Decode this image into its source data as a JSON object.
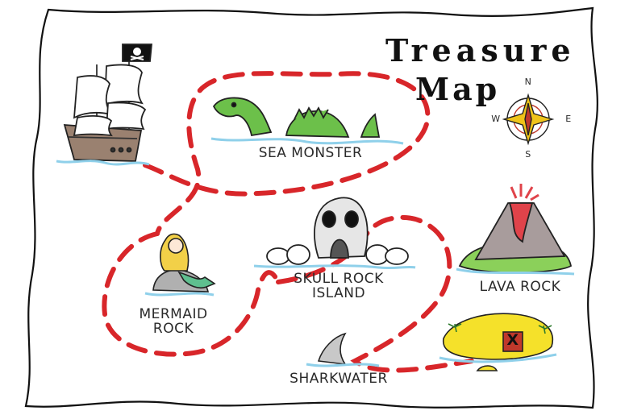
{
  "map": {
    "title_line1": "Treasure",
    "title_line2": "Map"
  },
  "compass": {
    "north": "N",
    "south": "S",
    "east": "E",
    "west": "W"
  },
  "locations": {
    "sea_monster": "SEA MONSTER",
    "skull_rock_line1": "SKULL ROCK",
    "skull_rock_line2": "ISLAND",
    "lava_rock": "LAVA ROCK",
    "mermaid_line1": "MERMAID",
    "mermaid_line2": "ROCK",
    "sharkwater": "SHARKWATER",
    "treasure_mark": "X"
  },
  "colors": {
    "path": "#d8262a",
    "monster": "#6cc04a",
    "lava": "#e0434a",
    "island_sand": "#f5e12a",
    "water": "#8fd0ea",
    "rock_gray": "#a8a8a8"
  }
}
